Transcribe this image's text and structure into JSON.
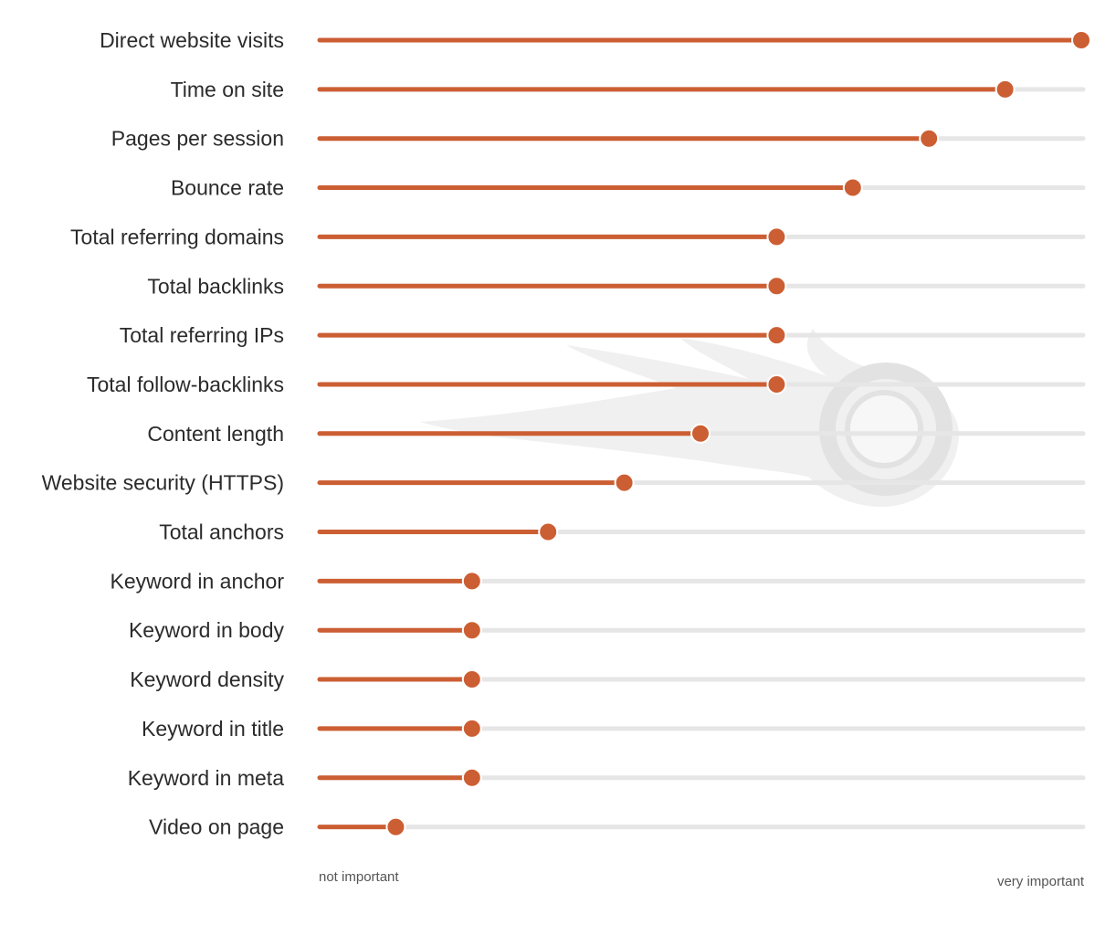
{
  "chart_data": {
    "type": "lollipop",
    "scale_min_label": "not important",
    "scale_max_label": "very important",
    "xlim": [
      0,
      10
    ],
    "categories": [
      "Direct website visits",
      "Time on site",
      "Pages per session",
      "Bounce rate",
      "Total referring domains",
      "Total backlinks",
      "Total referring IPs",
      "Total follow-backlinks",
      "Content length",
      "Website security (HTTPS)",
      "Total anchors",
      "Keyword in anchor",
      "Keyword in body",
      "Keyword density",
      "Keyword in title",
      "Keyword in meta",
      "Video on page"
    ],
    "values": [
      10,
      9,
      8,
      7,
      6,
      6,
      6,
      6,
      5,
      4,
      3,
      2,
      2,
      2,
      2,
      2,
      1
    ],
    "grid": false,
    "legend": "none",
    "watermark": "semrush-logo",
    "colors": {
      "accent": "#cc5e33",
      "track": "#e6e6e6",
      "label": "#2b2b2b",
      "scale_label": "#555555",
      "watermark": "#f0f0f0"
    }
  }
}
